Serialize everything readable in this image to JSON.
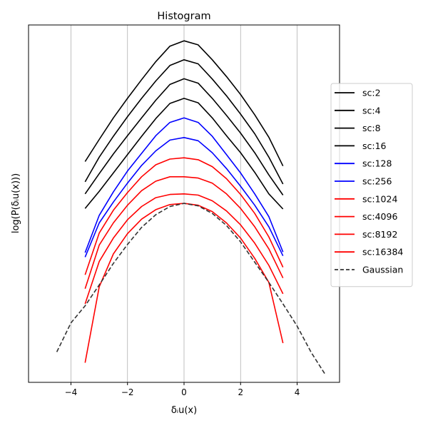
{
  "chart_data": {
    "type": "line",
    "title": "Histogram",
    "xlabel": "δᵢu(x)",
    "ylabel": "log(P(δᵢu(x)))",
    "xlim": [
      -5.5,
      5.5
    ],
    "x_ticks": [
      -4,
      -2,
      0,
      2,
      4
    ],
    "x_tick_labels": [
      "−4",
      "−2",
      "0",
      "2",
      "4"
    ],
    "y_ticks_shown": false,
    "grid": "x-only",
    "legend_position": "right",
    "series": [
      {
        "name": "sc:2",
        "color": "#000000",
        "dash": "solid",
        "x": [
          -3.5,
          -3.0,
          -2.5,
          -2.0,
          -1.5,
          -1.0,
          -0.5,
          0.0,
          0.5,
          1.0,
          1.5,
          2.0,
          2.5,
          3.0,
          3.5
        ],
        "y": [
          3.78,
          4.48,
          5.16,
          5.78,
          6.37,
          6.94,
          7.43,
          7.6,
          7.47,
          7.0,
          6.47,
          5.9,
          5.26,
          4.55,
          3.64
        ]
      },
      {
        "name": "sc:4",
        "color": "#000000",
        "dash": "solid",
        "x": [
          -3.5,
          -3.0,
          -2.5,
          -2.0,
          -1.5,
          -1.0,
          -0.5,
          0.0,
          0.5,
          1.0,
          1.5,
          2.0,
          2.5,
          3.0,
          3.5
        ],
        "y": [
          3.14,
          3.92,
          4.58,
          5.2,
          5.78,
          6.33,
          6.82,
          7.0,
          6.87,
          6.39,
          5.86,
          5.28,
          4.66,
          3.92,
          3.07
        ]
      },
      {
        "name": "sc:8",
        "color": "#000000",
        "dash": "solid",
        "x": [
          -3.5,
          -3.0,
          -2.5,
          -2.0,
          -1.5,
          -1.0,
          -0.5,
          0.0,
          0.5,
          1.0,
          1.5,
          2.0,
          2.5,
          3.0,
          3.5
        ],
        "y": [
          2.76,
          3.4,
          4.02,
          4.6,
          5.16,
          5.72,
          6.22,
          6.4,
          6.26,
          5.78,
          5.24,
          4.68,
          4.06,
          3.36,
          2.72
        ]
      },
      {
        "name": "sc:16",
        "color": "#000000",
        "dash": "solid",
        "x": [
          -3.5,
          -3.0,
          -2.5,
          -2.0,
          -1.5,
          -1.0,
          -0.5,
          0.0,
          0.5,
          1.0,
          1.5,
          2.0,
          2.5,
          3.0,
          3.5
        ],
        "y": [
          2.3,
          2.84,
          3.42,
          4.0,
          4.58,
          5.14,
          5.62,
          5.78,
          5.64,
          5.16,
          4.6,
          4.06,
          3.44,
          2.76,
          2.28
        ]
      },
      {
        "name": "sc:128",
        "color": "#0000ff",
        "dash": "solid",
        "x": [
          -3.5,
          -3.0,
          -2.5,
          -2.0,
          -1.5,
          -1.0,
          -0.5,
          0.0,
          0.5,
          1.0,
          1.5,
          2.0,
          2.5,
          3.0,
          3.5
        ],
        "y": [
          0.9,
          2.08,
          2.82,
          3.48,
          4.04,
          4.6,
          5.02,
          5.16,
          5.02,
          4.58,
          4.0,
          3.42,
          2.76,
          2.04,
          0.92
        ]
      },
      {
        "name": "sc:256",
        "color": "#0000ff",
        "dash": "solid",
        "x": [
          -3.5,
          -3.0,
          -2.5,
          -2.0,
          -1.5,
          -1.0,
          -0.5,
          0.0,
          0.5,
          1.0,
          1.5,
          2.0,
          2.5,
          3.0,
          3.5
        ],
        "y": [
          0.76,
          1.84,
          2.5,
          3.1,
          3.66,
          4.12,
          4.46,
          4.54,
          4.44,
          4.06,
          3.56,
          3.0,
          2.4,
          1.72,
          0.8
        ]
      },
      {
        "name": "sc:1024",
        "color": "#ff0000",
        "dash": "solid",
        "x": [
          -3.5,
          -3.0,
          -2.5,
          -2.0,
          -1.5,
          -1.0,
          -0.5,
          0.0,
          0.5,
          1.0,
          1.5,
          2.0,
          2.5,
          3.0,
          3.5
        ],
        "y": [
          0.2,
          1.52,
          2.24,
          2.8,
          3.3,
          3.68,
          3.86,
          3.9,
          3.84,
          3.62,
          3.24,
          2.74,
          2.14,
          1.4,
          0.44
        ]
      },
      {
        "name": "sc:4096",
        "color": "#ff0000",
        "dash": "solid",
        "x": [
          -3.5,
          -3.0,
          -2.5,
          -2.0,
          -1.5,
          -1.0,
          -0.5,
          0.0,
          0.5,
          1.0,
          1.5,
          2.0,
          2.5,
          3.0,
          3.5
        ],
        "y": [
          -0.24,
          1.14,
          1.84,
          2.4,
          2.86,
          3.16,
          3.3,
          3.3,
          3.26,
          3.1,
          2.76,
          2.3,
          1.72,
          1.02,
          0.1
        ]
      },
      {
        "name": "sc:8192",
        "color": "#ff0000",
        "dash": "solid",
        "x": [
          -3.5,
          -3.0,
          -2.5,
          -2.0,
          -1.5,
          -1.0,
          -0.5,
          0.0,
          0.5,
          1.0,
          1.5,
          2.0,
          2.5,
          3.0,
          3.5
        ],
        "y": [
          -0.72,
          0.62,
          1.36,
          1.94,
          2.36,
          2.64,
          2.74,
          2.76,
          2.72,
          2.54,
          2.22,
          1.78,
          1.2,
          0.5,
          -0.4
        ]
      },
      {
        "name": "sc:16384",
        "color": "#ff0000",
        "dash": "solid",
        "x": [
          -3.5,
          -3.0,
          -2.5,
          -2.0,
          -1.5,
          -1.0,
          -0.5,
          0.0,
          0.5,
          1.0,
          1.5,
          2.0,
          2.5,
          3.0,
          3.5
        ],
        "y": [
          -2.58,
          -0.18,
          0.86,
          1.5,
          1.96,
          2.26,
          2.42,
          2.46,
          2.4,
          2.2,
          1.84,
          1.36,
          0.72,
          -0.04,
          -1.96
        ]
      },
      {
        "name": "Gaussian",
        "color": "#333333",
        "dash": "dashed",
        "x": [
          -4.5,
          -4.0,
          -3.5,
          -3.0,
          -2.5,
          -2.0,
          -1.5,
          -1.0,
          -0.5,
          0.0,
          0.5,
          1.0,
          1.5,
          2.0,
          2.5,
          3.0,
          3.5,
          4.0,
          4.5,
          5.0
        ],
        "y": [
          -2.24,
          -1.32,
          -0.78,
          -0.12,
          0.56,
          1.16,
          1.7,
          2.1,
          2.36,
          2.46,
          2.38,
          2.14,
          1.76,
          1.24,
          0.6,
          -0.04,
          -0.72,
          -1.42,
          -2.26,
          -2.96
        ]
      }
    ]
  }
}
